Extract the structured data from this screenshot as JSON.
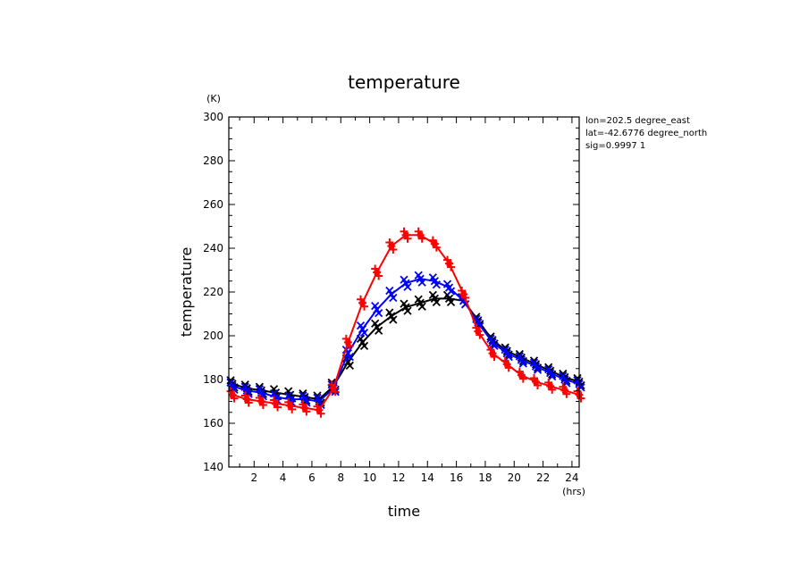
{
  "chart_data": {
    "type": "line",
    "title": "temperature",
    "xlabel": "time",
    "ylabel": "temperature",
    "x_unit": "(hrs)",
    "y_unit": "(K)",
    "xlim": [
      0.25,
      24.5
    ],
    "ylim": [
      140,
      300
    ],
    "x_ticks": [
      2,
      4,
      6,
      8,
      10,
      12,
      14,
      16,
      18,
      20,
      22,
      24
    ],
    "y_ticks": [
      140,
      160,
      180,
      200,
      220,
      240,
      260,
      280,
      300
    ],
    "info_lines": [
      "lon=202.5 degree_east",
      "lat=-42.6776 degree_north",
      "sig=0.9997 1"
    ],
    "x": [
      0.5,
      1.5,
      2.5,
      3.5,
      4.5,
      5.5,
      6.5,
      7.5,
      8.5,
      9.5,
      10.5,
      11.5,
      12.5,
      13.5,
      14.5,
      15.5,
      16.5,
      17.5,
      18.5,
      19.5,
      20.5,
      21.5,
      22.5,
      23.5,
      24.5
    ],
    "series": [
      {
        "name": "black",
        "color": "#000000",
        "marker": "x",
        "values": [
          178,
          176,
          175,
          174,
          173,
          172,
          171,
          177,
          188,
          197,
          204,
          209,
          213,
          215,
          217,
          217,
          216,
          207,
          198,
          193,
          190,
          187,
          184,
          181,
          179
        ]
      },
      {
        "name": "blue",
        "color": "#0000ff",
        "marker": "x",
        "values": [
          177,
          175,
          174,
          172,
          171,
          171,
          170,
          176,
          192,
          203,
          212,
          219,
          224,
          226,
          225,
          222,
          216,
          206,
          197,
          192,
          189,
          186,
          183,
          180,
          178
        ]
      },
      {
        "name": "red",
        "color": "#ff0000",
        "marker": "plus",
        "values": [
          173,
          171,
          170,
          169,
          168,
          167,
          166,
          176,
          197,
          215,
          229,
          241,
          246,
          246,
          242,
          233,
          219,
          202,
          192,
          187,
          182,
          179,
          177,
          175,
          173
        ]
      }
    ]
  }
}
